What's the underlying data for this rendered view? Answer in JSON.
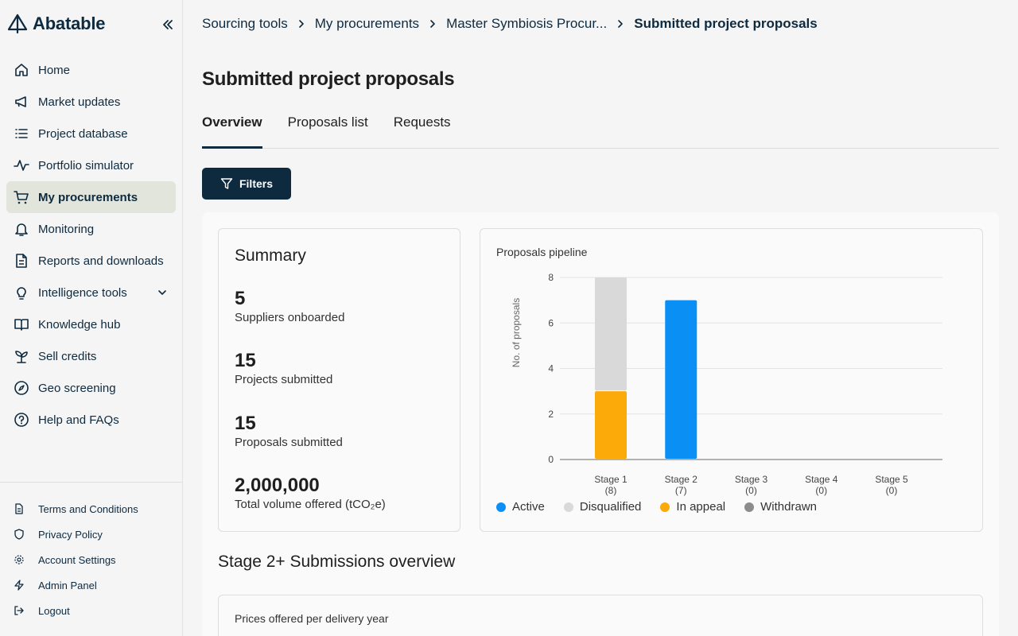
{
  "brand": {
    "name": "Abatable"
  },
  "sidebar": {
    "items": [
      {
        "label": "Home",
        "icon": "home-icon"
      },
      {
        "label": "Market updates",
        "icon": "megaphone-icon"
      },
      {
        "label": "Project database",
        "icon": "list-icon"
      },
      {
        "label": "Portfolio simulator",
        "icon": "activity-icon"
      },
      {
        "label": "My procurements",
        "icon": "cart-icon",
        "active": true
      },
      {
        "label": "Monitoring",
        "icon": "bell-icon"
      },
      {
        "label": "Reports and downloads",
        "icon": "document-icon"
      },
      {
        "label": "Intelligence tools",
        "icon": "lightbulb-icon"
      },
      {
        "label": "Knowledge hub",
        "icon": "book-icon"
      },
      {
        "label": "Sell credits",
        "icon": "sprout-icon"
      },
      {
        "label": "Geo screening",
        "icon": "compass-icon"
      },
      {
        "label": "Help and FAQs",
        "icon": "help-circle-icon"
      }
    ],
    "footer": [
      {
        "label": "Terms and Conditions",
        "icon": "document-icon"
      },
      {
        "label": "Privacy Policy",
        "icon": "shield-icon"
      },
      {
        "label": "Account Settings",
        "icon": "gear-icon"
      },
      {
        "label": "Admin Panel",
        "icon": "lightning-icon"
      },
      {
        "label": "Logout",
        "icon": "logout-icon"
      }
    ]
  },
  "breadcrumb": [
    "Sourcing tools",
    "My procurements",
    "Master Symbiosis Procur...",
    "Submitted project proposals"
  ],
  "page": {
    "title": "Submitted project proposals",
    "tabs": [
      "Overview",
      "Proposals list",
      "Requests"
    ],
    "filters_label": "Filters"
  },
  "summary": {
    "title": "Summary",
    "metrics": [
      {
        "value": "5",
        "caption": "Suppliers onboarded"
      },
      {
        "value": "15",
        "caption": "Projects submitted"
      },
      {
        "value": "15",
        "caption": "Proposals submitted"
      },
      {
        "value": "2,000,000",
        "caption": "Total volume offered (tCO₂e)"
      }
    ]
  },
  "chart_data": {
    "type": "bar",
    "stacked": true,
    "title": "Proposals pipeline",
    "ylabel": "No. of proposals",
    "xlabel": "",
    "ylim": [
      0,
      8
    ],
    "yticks": [
      0,
      2,
      4,
      6,
      8
    ],
    "grid": true,
    "legend_position": "bottom-left",
    "categories": [
      "Stage 1",
      "Stage 2",
      "Stage 3",
      "Stage 4",
      "Stage 5"
    ],
    "category_counts": [
      "(8)",
      "(7)",
      "(0)",
      "(0)",
      "(0)"
    ],
    "series": [
      {
        "name": "Active",
        "color": "#0a8ff5",
        "values": [
          0,
          7,
          0,
          0,
          0
        ]
      },
      {
        "name": "Disqualified",
        "color": "#d9d9d9",
        "values": [
          5,
          0,
          0,
          0,
          0
        ]
      },
      {
        "name": "In appeal",
        "color": "#fca90a",
        "values": [
          3,
          0,
          0,
          0,
          0
        ]
      },
      {
        "name": "Withdrawn",
        "color": "#8c8c8c",
        "values": [
          0,
          0,
          0,
          0,
          0
        ]
      }
    ]
  },
  "sections": {
    "stage2_title": "Stage 2+ Submissions overview",
    "prices_title": "Prices offered per delivery year"
  }
}
